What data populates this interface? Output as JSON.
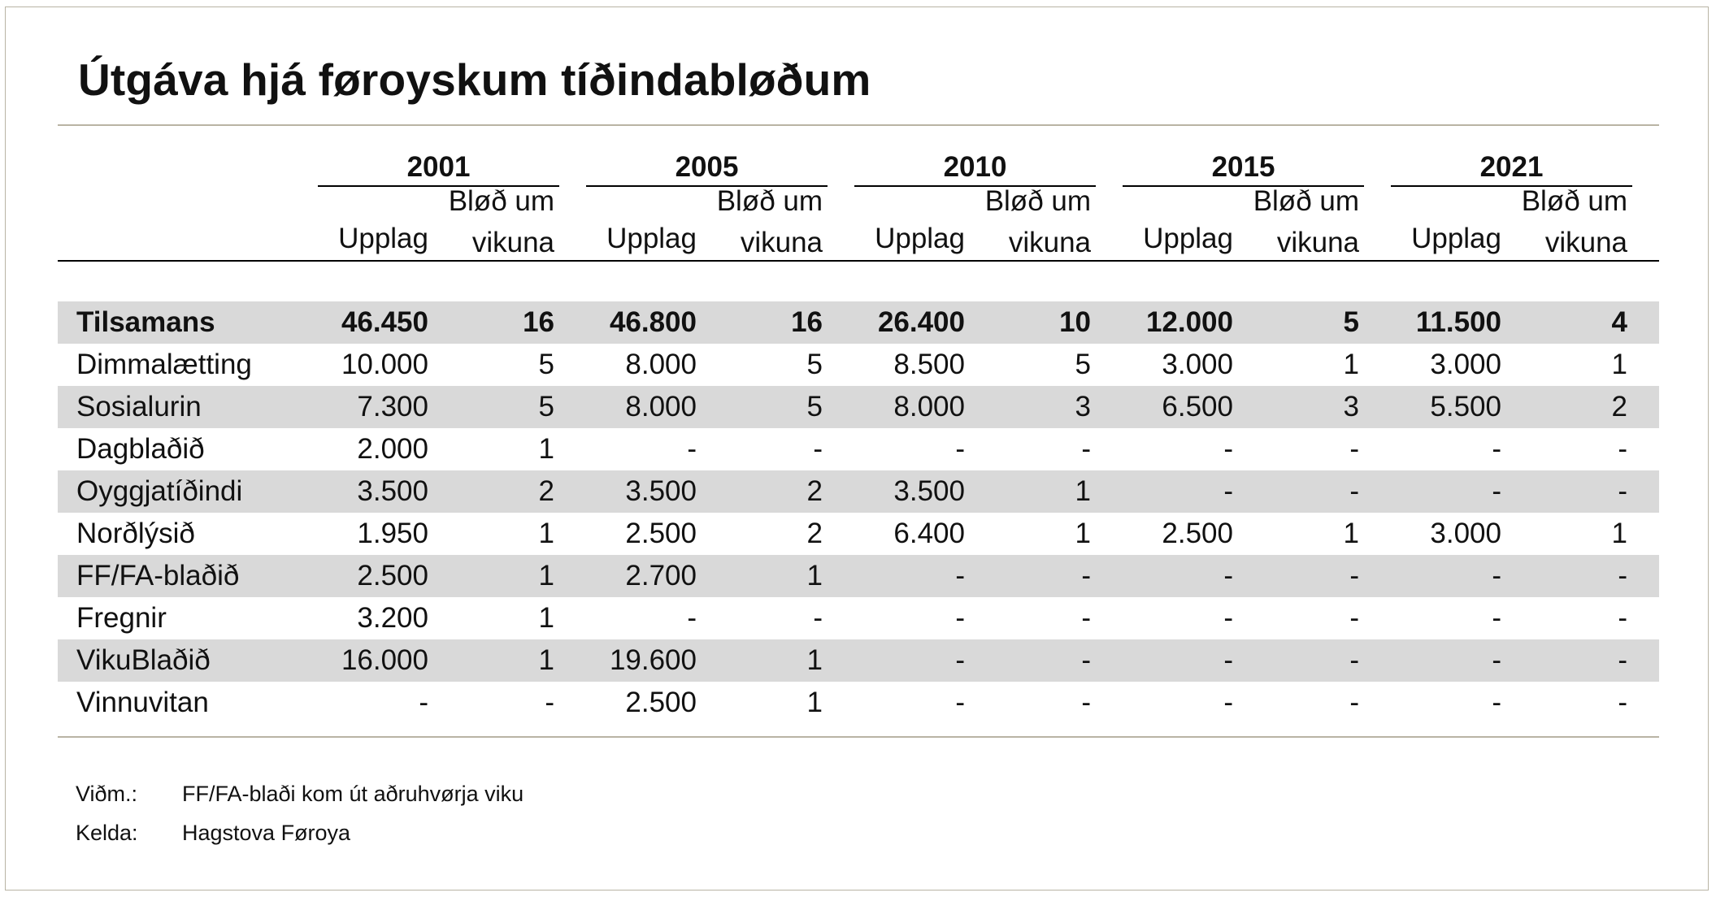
{
  "title": "Útgáva hjá føroyskum tíðindabløðum",
  "years": [
    "2001",
    "2005",
    "2010",
    "2015",
    "2021"
  ],
  "subheaders": {
    "circulation": "Upplag",
    "issues_line1": "Bløð um",
    "issues_line2": "vikuna"
  },
  "rows": [
    {
      "name": "Tilsamans",
      "values": [
        "46.450",
        "16",
        "46.800",
        "16",
        "26.400",
        "10",
        "12.000",
        "5",
        "11.500",
        "4"
      ],
      "total": true,
      "shaded": true
    },
    {
      "name": "Dimmalætting",
      "values": [
        "10.000",
        "5",
        "8.000",
        "5",
        "8.500",
        "5",
        "3.000",
        "1",
        "3.000",
        "1"
      ],
      "total": false,
      "shaded": false
    },
    {
      "name": "Sosialurin",
      "values": [
        "7.300",
        "5",
        "8.000",
        "5",
        "8.000",
        "3",
        "6.500",
        "3",
        "5.500",
        "2"
      ],
      "total": false,
      "shaded": true
    },
    {
      "name": "Dagblaðið",
      "values": [
        "2.000",
        "1",
        "-",
        "-",
        "-",
        "-",
        "-",
        "-",
        "-",
        "-"
      ],
      "total": false,
      "shaded": false
    },
    {
      "name": "Oyggjatíðindi",
      "values": [
        "3.500",
        "2",
        "3.500",
        "2",
        "3.500",
        "1",
        "-",
        "-",
        "-",
        "-"
      ],
      "total": false,
      "shaded": true
    },
    {
      "name": "Norðlýsið",
      "values": [
        "1.950",
        "1",
        "2.500",
        "2",
        "6.400",
        "1",
        "2.500",
        "1",
        "3.000",
        "1"
      ],
      "total": false,
      "shaded": false
    },
    {
      "name": "FF/FA-blaðið",
      "values": [
        "2.500",
        "1",
        "2.700",
        "1",
        "-",
        "-",
        "-",
        "-",
        "-",
        "-"
      ],
      "total": false,
      "shaded": true
    },
    {
      "name": "Fregnir",
      "values": [
        "3.200",
        "1",
        "-",
        "-",
        "-",
        "-",
        "-",
        "-",
        "-",
        "-"
      ],
      "total": false,
      "shaded": false
    },
    {
      "name": "VikuBlaðið",
      "values": [
        "16.000",
        "1",
        "19.600",
        "1",
        "-",
        "-",
        "-",
        "-",
        "-",
        "-"
      ],
      "total": false,
      "shaded": true
    },
    {
      "name": "Vinnuvitan",
      "values": [
        "-",
        "-",
        "2.500",
        "1",
        "-",
        "-",
        "-",
        "-",
        "-",
        "-"
      ],
      "total": false,
      "shaded": false
    }
  ],
  "notes": [
    {
      "label": "Viðm.:",
      "text": "FF/FA-blaði kom út aðruhvørja viku"
    },
    {
      "label": "Kelda:",
      "text": "Hagstova Føroya"
    }
  ]
}
